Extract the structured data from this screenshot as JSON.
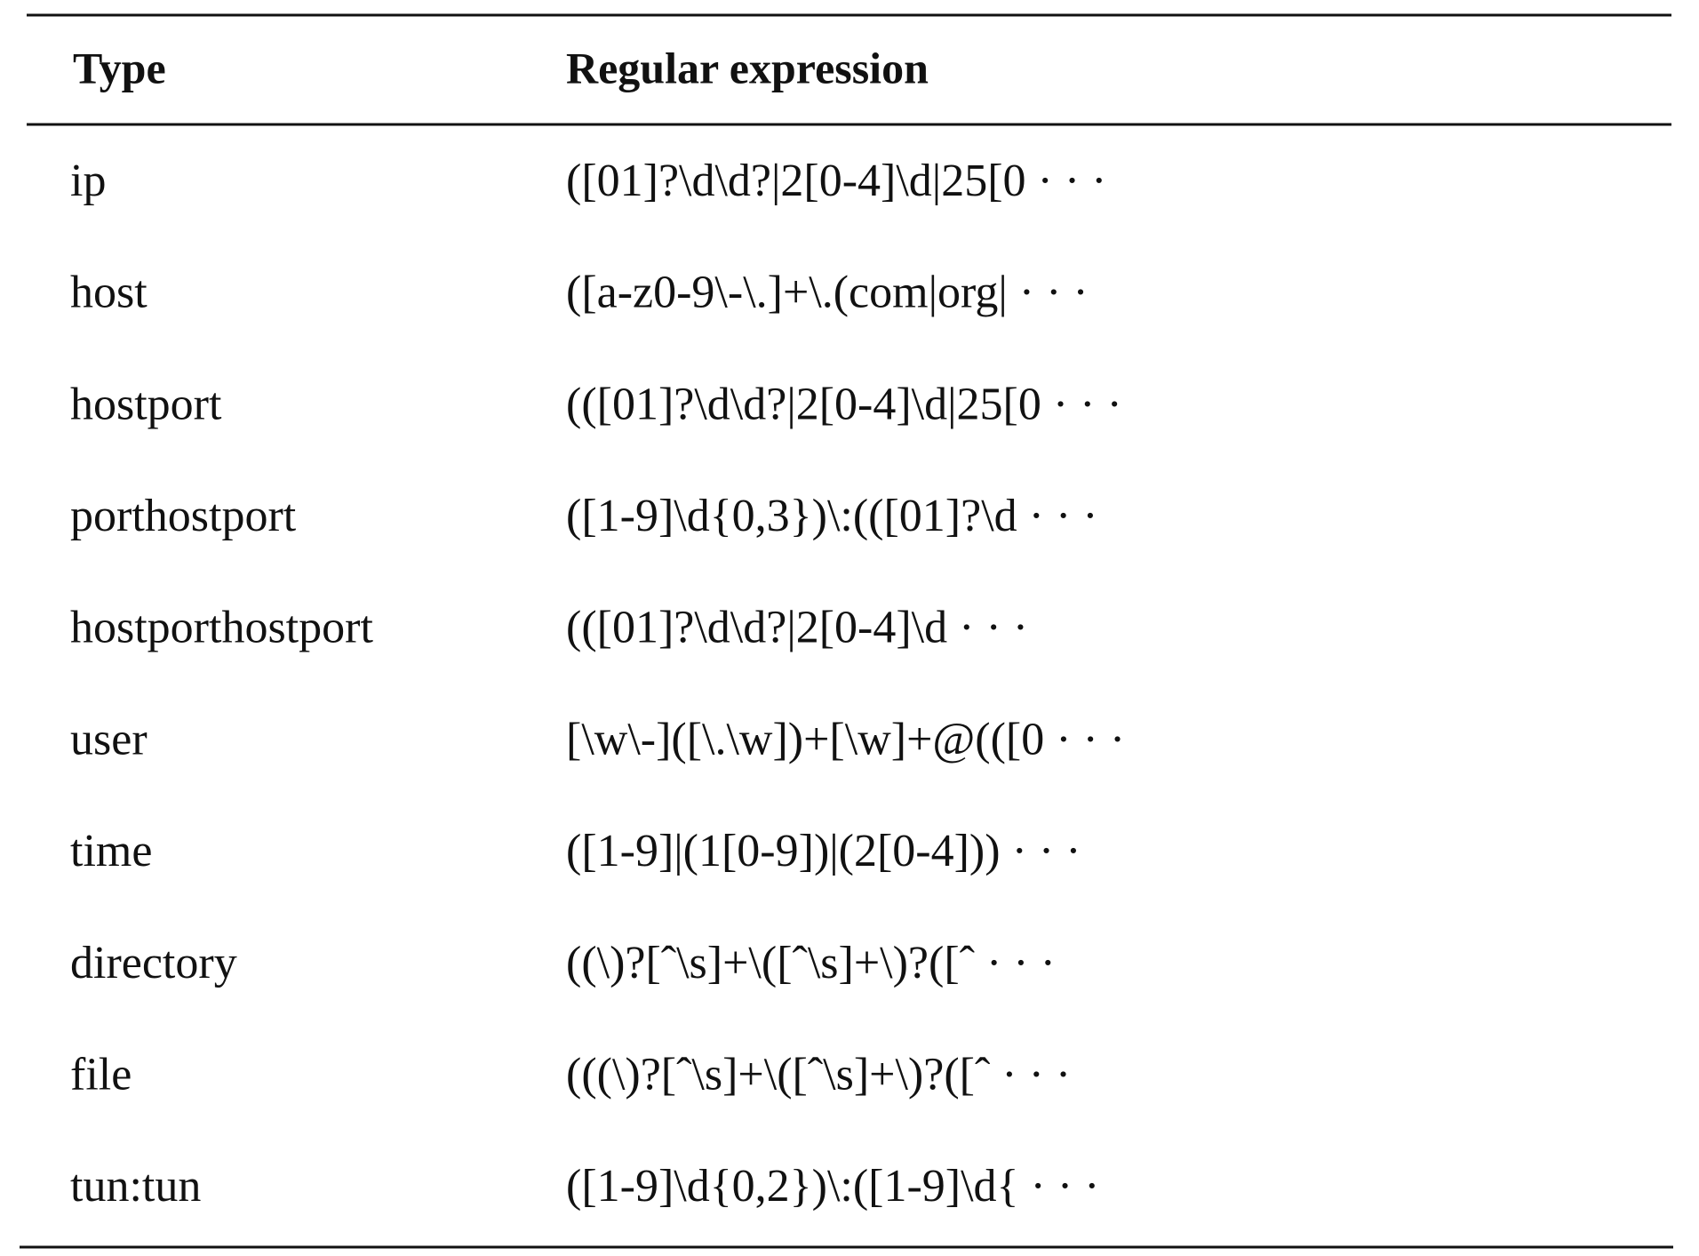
{
  "table": {
    "header": [
      "Type",
      "Regular expression"
    ],
    "rows": [
      [
        "ip",
        "([01]?\\d\\d?|2[0-4]\\d|25[0 · · ·"
      ],
      [
        "host",
        "([a-z0-9\\-\\.]+\\.(com|org| · · ·"
      ],
      [
        "hostport",
        "(([01]?\\d\\d?|2[0-4]\\d|25[0 · · ·"
      ],
      [
        "porthostport",
        "([1-9]\\d{0,3})\\:(([01]?\\d · · ·"
      ],
      [
        "hostporthostport",
        "(([01]?\\d\\d?|2[0-4]\\d · · ·"
      ],
      [
        "user",
        "[\\w\\-]([\\.\\w])+[\\w]+@(([0 · · ·"
      ],
      [
        "time",
        "([1-9]|(1[0-9])|(2[0-4])) · · ·"
      ],
      [
        "directory",
        "((\\)?[ˆ\\s]+\\([ˆ\\s]+\\)?([ˆ · · ·"
      ],
      [
        "file",
        "(((\\)?[ˆ\\s]+\\([ˆ\\s]+\\)?([ˆ · · ·"
      ],
      [
        "tun:tun",
        "([1-9]\\d{0,2})\\:([1-9]\\d{ · · ·"
      ]
    ]
  }
}
